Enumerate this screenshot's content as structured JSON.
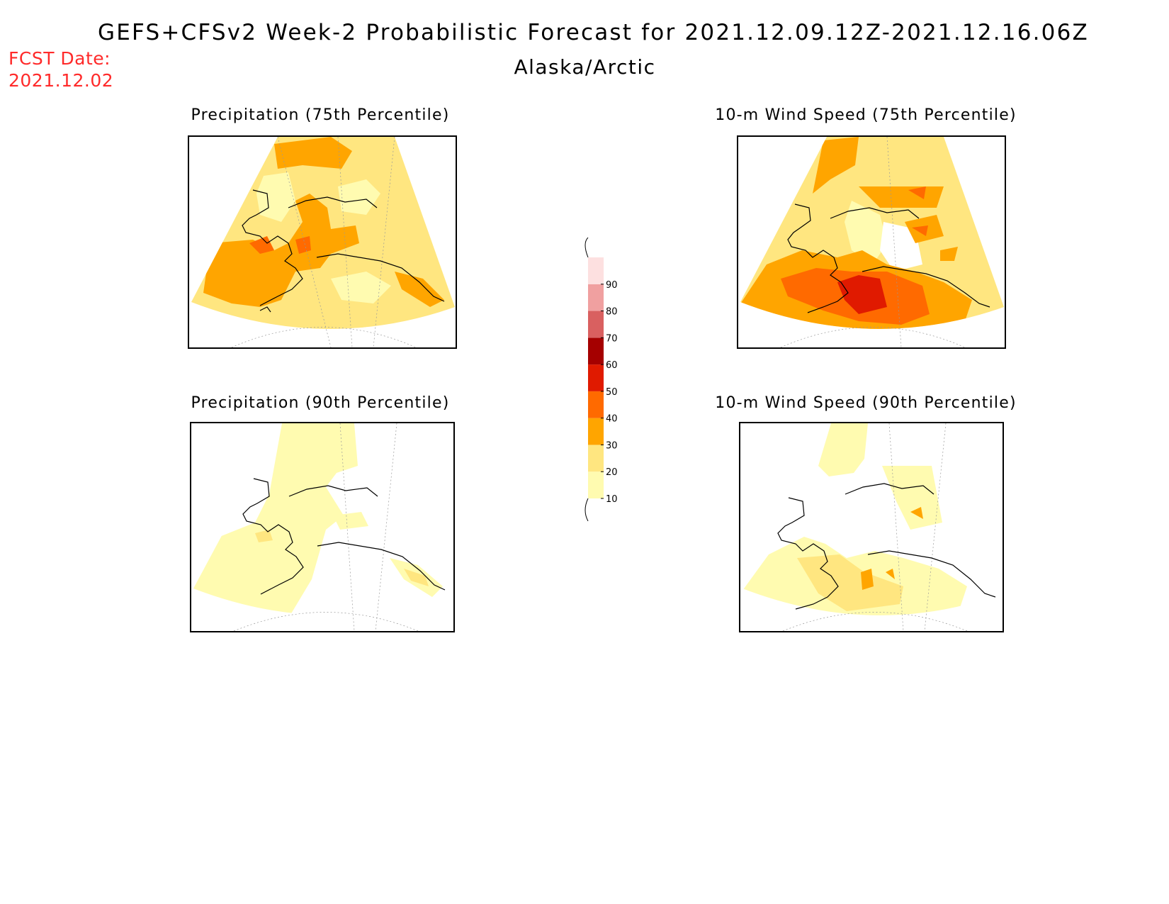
{
  "header": {
    "title": "GEFS+CFSv2 Week-2 Probabilistic Forecast for 2021.12.09.12Z-2021.12.16.06Z",
    "region": "Alaska/Arctic",
    "fcst_label": "FCST Date:",
    "fcst_date": "2021.12.02"
  },
  "panels": [
    {
      "id": "precip-75",
      "title": "Precipitation (75th Percentile)"
    },
    {
      "id": "wind-75",
      "title": "10-m Wind Speed (75th Percentile)"
    },
    {
      "id": "precip-90",
      "title": "Precipitation (90th Percentile)"
    },
    {
      "id": "wind-90",
      "title": "10-m Wind Speed (90th Percentile)"
    }
  ],
  "legend": {
    "levels": [
      "10",
      "20",
      "30",
      "40",
      "50",
      "60",
      "70",
      "80",
      "90"
    ],
    "colors": [
      "#fffbb0",
      "#ffe680",
      "#ffa500",
      "#ff6a00",
      "#e01a00",
      "#a50000",
      "#d96060",
      "#f0a0a0",
      "#fde0e0"
    ]
  },
  "colors": {
    "c10": "#fffbb0",
    "c20": "#ffe680",
    "c30": "#ffa500",
    "c40": "#ff6a00",
    "c50": "#e01a00",
    "fcst_red": "#ff2a2a"
  }
}
